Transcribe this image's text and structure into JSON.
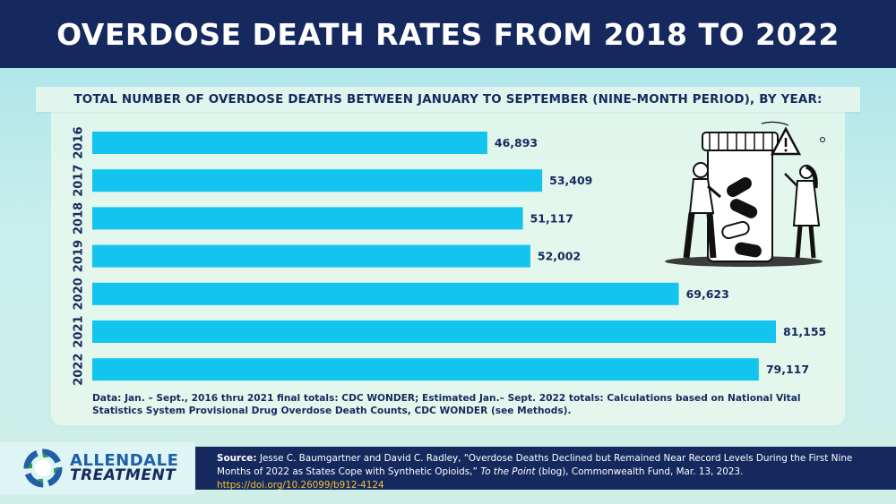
{
  "header": {
    "title": "OVERDOSE DEATH RATES FROM 2018 TO 2022"
  },
  "chart_data": {
    "type": "bar",
    "orientation": "horizontal",
    "title": "TOTAL NUMBER OF OVERDOSE DEATHS BETWEEN JANUARY TO SEPTEMBER (NINE-MONTH PERIOD), BY YEAR:",
    "categories": [
      "2016",
      "2017",
      "2018",
      "2019",
      "2020",
      "2021",
      "2022"
    ],
    "values": [
      46893,
      53409,
      51117,
      52002,
      69623,
      81155,
      79117
    ],
    "value_labels": [
      "46,893",
      "53,409",
      "51,117",
      "52,002",
      "69,623",
      "81,155",
      "79,117"
    ],
    "xlim": [
      0,
      81155
    ],
    "bar_color": "#12c4ee",
    "grid": false,
    "legend": "none"
  },
  "note": "Data: Jan. – Sept., 2016 thru 2021 final totals: CDC WONDER; Estimated Jan.– Sept. 2022 totals: Calculations based on National Vital Statistics System Provisional Drug Overdose Death Counts, CDC WONDER (see Methods).",
  "footer": {
    "logo_line1": "ALLENDALE",
    "logo_line2": "TREATMENT",
    "source_label": "Source:",
    "source_text1": "Jesse C. Baumgartner and David C. Radley, “Overdose Deaths Declined but Remained Near Record Levels During the First Nine Months of 2022 as States Cope with Synthetic Opioids,”",
    "source_italic": "To the Point",
    "source_text2": "(blog), Commonwealth Fund, Mar. 13, 2023.",
    "doi": "https://doi.org/10.26099/b912-4124"
  },
  "colors": {
    "navy": "#15295e",
    "bar": "#12c4ee",
    "doi": "#f4c430"
  },
  "icons": {
    "illustration": "pill-bottle-warning-illustration",
    "logo": "allendale-logo-icon"
  }
}
